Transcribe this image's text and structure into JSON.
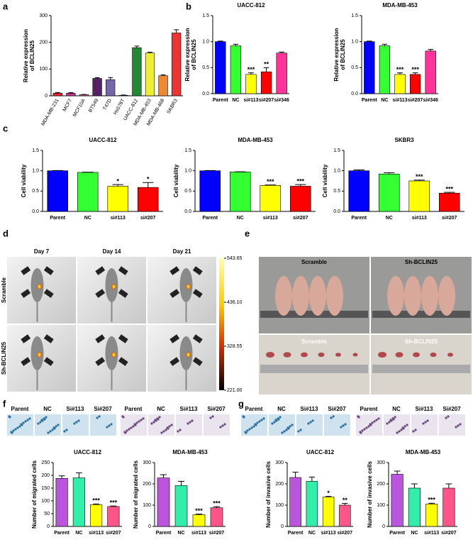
{
  "panel_labels": [
    "a",
    "b",
    "c",
    "d",
    "e",
    "f",
    "g"
  ],
  "chart_data": [
    {
      "type": "bar",
      "ylabel": [
        "Relative expression",
        "of BCLIN25"
      ],
      "categories": [
        "MDA-MB-231",
        "MCF7",
        "MCF10A",
        "BT549",
        "T47D",
        "Hs578T",
        "UACC-812",
        "MDA-MB-453",
        "MDA-MB-468",
        "SKBR3"
      ],
      "values": [
        10,
        10,
        4,
        65,
        60,
        2,
        180,
        160,
        75,
        235
      ],
      "errors": [
        2,
        2,
        1,
        3,
        8,
        1,
        6,
        3,
        3,
        12
      ],
      "colors": [
        "#ee2233",
        "#bb3388",
        "#dd5599",
        "#552266",
        "#7766aa",
        "#6677bb",
        "#228833",
        "#eeee33",
        "#ee8833",
        "#ee3333"
      ],
      "ylim": [
        0,
        300
      ],
      "yticks": [
        0,
        100,
        200,
        300
      ]
    },
    {
      "type": "bar",
      "title": "UACC-812",
      "ylabel": [
        "Relative expression",
        "of BCLIN25"
      ],
      "categories": [
        "Parent",
        "NC",
        "si#113",
        "si#207",
        "si#346"
      ],
      "values": [
        1.0,
        0.92,
        0.37,
        0.42,
        0.78
      ],
      "errors": [
        0.01,
        0.03,
        0.03,
        0.08,
        0.02
      ],
      "annotations": [
        null,
        null,
        "***",
        "**",
        null
      ],
      "colors": [
        "#0000ff",
        "#33ff33",
        "#ffff00",
        "#ff0000",
        "#ff3399"
      ],
      "ylim": [
        0,
        1.5
      ],
      "yticks": [
        {
          "value": 0,
          "label": "0.0"
        },
        0.5,
        {
          "value": 1,
          "label": "1.0"
        },
        1.5
      ]
    },
    {
      "type": "bar",
      "title": "MDA-MB-453",
      "ylabel": [
        "Relative expression",
        "of BCLIN25"
      ],
      "categories": [
        "Parent",
        "NC",
        "si#113",
        "si#207",
        "si#346"
      ],
      "values": [
        1.0,
        0.92,
        0.37,
        0.37,
        0.82
      ],
      "errors": [
        0.01,
        0.03,
        0.03,
        0.03,
        0.03
      ],
      "annotations": [
        null,
        null,
        "***",
        "***",
        null
      ],
      "colors": [
        "#0000ff",
        "#33ff33",
        "#ffff00",
        "#ff0000",
        "#ff3399"
      ],
      "ylim": [
        0,
        1.5
      ],
      "yticks": [
        {
          "value": 0,
          "label": "0.0"
        },
        0.5,
        {
          "value": 1,
          "label": "1.0"
        },
        1.5
      ]
    },
    {
      "type": "bar",
      "title": "UACC-812",
      "ylabel": [
        "Cell viability"
      ],
      "categories": [
        "Parent",
        "NC",
        "si#113",
        "si#207"
      ],
      "values": [
        1.0,
        0.96,
        0.62,
        0.59
      ],
      "errors": [
        0.005,
        0.005,
        0.04,
        0.12
      ],
      "annotations": [
        null,
        null,
        "*",
        "*"
      ],
      "colors": [
        "#0000ff",
        "#33ff33",
        "#ffff00",
        "#ff0000"
      ],
      "ylim": [
        0,
        1.5
      ],
      "yticks": [
        {
          "value": 0,
          "label": "0.0"
        },
        0.5,
        {
          "value": 1,
          "label": "1.0"
        },
        1.5
      ]
    },
    {
      "type": "bar",
      "title": "MDA-MB-453",
      "ylabel": [
        "Cell viability"
      ],
      "categories": [
        "Parent",
        "NC",
        "si#113",
        "si#207"
      ],
      "values": [
        1.0,
        0.97,
        0.64,
        0.62
      ],
      "errors": [
        0.005,
        0.005,
        0.01,
        0.04
      ],
      "annotations": [
        null,
        null,
        "***",
        "***"
      ],
      "colors": [
        "#0000ff",
        "#33ff33",
        "#ffff00",
        "#ff0000"
      ],
      "ylim": [
        0,
        1.5
      ],
      "yticks": [
        {
          "value": 0,
          "label": "0.0"
        },
        0.5,
        {
          "value": 1,
          "label": "1.0"
        },
        1.5
      ]
    },
    {
      "type": "bar",
      "title": "SKBR3",
      "ylabel": [
        "Cell viability"
      ],
      "categories": [
        "Parent",
        "NC",
        "si#113",
        "si#207"
      ],
      "values": [
        1.0,
        0.92,
        0.75,
        0.45
      ],
      "errors": [
        0.02,
        0.03,
        0.02,
        0.02
      ],
      "annotations": [
        null,
        null,
        "***",
        "***"
      ],
      "colors": [
        "#0000ff",
        "#33ff33",
        "#ffff00",
        "#ff0000"
      ],
      "ylim": [
        0,
        1.5
      ],
      "yticks": [
        {
          "value": 0,
          "label": "0.0"
        },
        0.5,
        {
          "value": 1,
          "label": "1.0"
        },
        1.5
      ]
    },
    {
      "type": "bar",
      "title": "UACC-812",
      "ylabel": [
        "Number of migrated cells"
      ],
      "categories": [
        "Parent",
        "NC",
        "si#113",
        "si#207"
      ],
      "values": [
        188,
        190,
        85,
        78
      ],
      "errors": [
        10,
        20,
        3,
        2
      ],
      "annotations": [
        null,
        null,
        "***",
        "***"
      ],
      "colors": [
        "#bb55dd",
        "#33eeaa",
        "#ffff00",
        "#ff5588"
      ],
      "ylim": [
        0,
        250
      ],
      "yticks": [
        0,
        50,
        100,
        150,
        200,
        250
      ]
    },
    {
      "type": "bar",
      "title": "MDA-MB-453",
      "ylabel": [
        "Number of migrated cells"
      ],
      "categories": [
        "Parent",
        "NC",
        "si#113",
        "si#207"
      ],
      "values": [
        228,
        192,
        55,
        88
      ],
      "errors": [
        15,
        20,
        3,
        5
      ],
      "annotations": [
        null,
        null,
        "***",
        "***"
      ],
      "colors": [
        "#bb55dd",
        "#33eeaa",
        "#ffff00",
        "#ff5588"
      ],
      "ylim": [
        0,
        300
      ],
      "yticks": [
        0,
        100,
        200,
        300
      ]
    },
    {
      "type": "bar",
      "title": "UACC-812",
      "ylabel": [
        "Number of invasive cells"
      ],
      "categories": [
        "Parent",
        "NC",
        "si#113",
        "si#207"
      ],
      "values": [
        230,
        212,
        138,
        100
      ],
      "errors": [
        25,
        20,
        3,
        8
      ],
      "annotations": [
        null,
        null,
        "*",
        "**"
      ],
      "colors": [
        "#bb55dd",
        "#33eeaa",
        "#ffff00",
        "#ff5588"
      ],
      "ylim": [
        0,
        300
      ],
      "yticks": [
        0,
        100,
        200,
        300
      ]
    },
    {
      "type": "bar",
      "title": "MDA-MB-453",
      "ylabel": [
        "Number of invasive cells"
      ],
      "categories": [
        "Parent",
        "NC",
        "si#113",
        "si#207"
      ],
      "values": [
        245,
        180,
        105,
        180
      ],
      "errors": [
        15,
        20,
        4,
        20
      ],
      "annotations": [
        null,
        null,
        "***",
        null
      ],
      "colors": [
        "#bb55dd",
        "#33eeaa",
        "#ffff00",
        "#ff5588"
      ],
      "ylim": [
        0,
        300
      ],
      "yticks": [
        0,
        100,
        200,
        300
      ]
    }
  ],
  "imaging": {
    "days": [
      "Day 7",
      "Day 14",
      "Day 21"
    ],
    "groups": [
      "Scramble",
      "Sh-BCLIN25"
    ],
    "colorbar_ticks": [
      543.65,
      {
        "value": 436.1,
        "label": "436.10"
      },
      328.55,
      {
        "value": 221,
        "label": "221.00"
      }
    ]
  },
  "tumor_photos": {
    "top": [
      "Scramble",
      "Sh-BCLIN25"
    ],
    "bottom": [
      "Scramble",
      "Sh-BCLIN25"
    ]
  },
  "micrographs": {
    "f": [
      "Parent",
      "NC",
      "Si#113",
      "Si#207",
      "Parent",
      "NC",
      "Si#113",
      "Si#207"
    ],
    "g": [
      "Parent",
      "NC",
      "Si#113",
      "Si#207",
      "Parent",
      "NC",
      "Si#113",
      "Si#207"
    ]
  }
}
